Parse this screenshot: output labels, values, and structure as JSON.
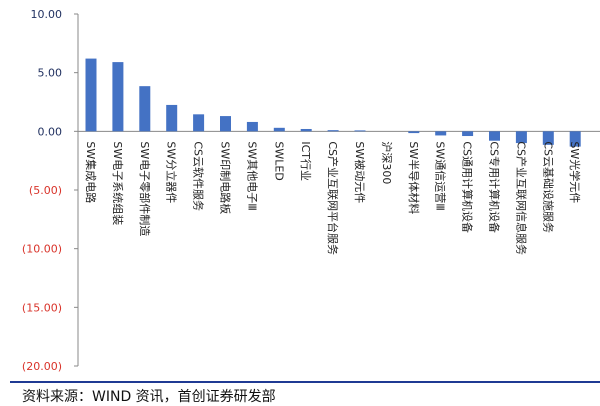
{
  "chart_data": {
    "type": "bar",
    "title": "",
    "xlabel": "",
    "ylabel": "",
    "ylim": [
      -20,
      10
    ],
    "yticks": [
      10,
      5,
      0,
      -5,
      -10,
      -15,
      -20
    ],
    "ytick_labels": [
      "10.00",
      "5.00",
      "0.00",
      "(5.00)",
      "(10.00)",
      "(15.00)",
      "(20.00)"
    ],
    "positive_color": "#1f2f5f",
    "negative_color": "#d9342b",
    "bar_color": "#4472c4",
    "categories": [
      "SW集成电路",
      "SW电子系统组装",
      "SW电子零部件制造",
      "SW分立器件",
      "CS云软件服务",
      "SW印制电路板",
      "SW其他电子Ⅲ",
      "SWLED",
      "ICT行业",
      "CS产业互联网平台服务",
      "SW被动元件",
      "沪深300",
      "SW半导体材料",
      "SW通信运营Ⅲ",
      "CS通用计算机设备",
      "CS专用计算机设备",
      "CS产业互联网信息服务",
      "CS云基础设施服务",
      "SW光学元件"
    ],
    "values": [
      6.2,
      5.9,
      3.85,
      2.25,
      1.45,
      1.3,
      0.8,
      0.3,
      0.2,
      0.1,
      0.08,
      0.0,
      -0.15,
      -0.35,
      -0.4,
      -0.8,
      -1.0,
      -1.15,
      -1.3
    ]
  },
  "footer": {
    "source": "资料来源：WIND 资讯，首创证券研发部"
  }
}
